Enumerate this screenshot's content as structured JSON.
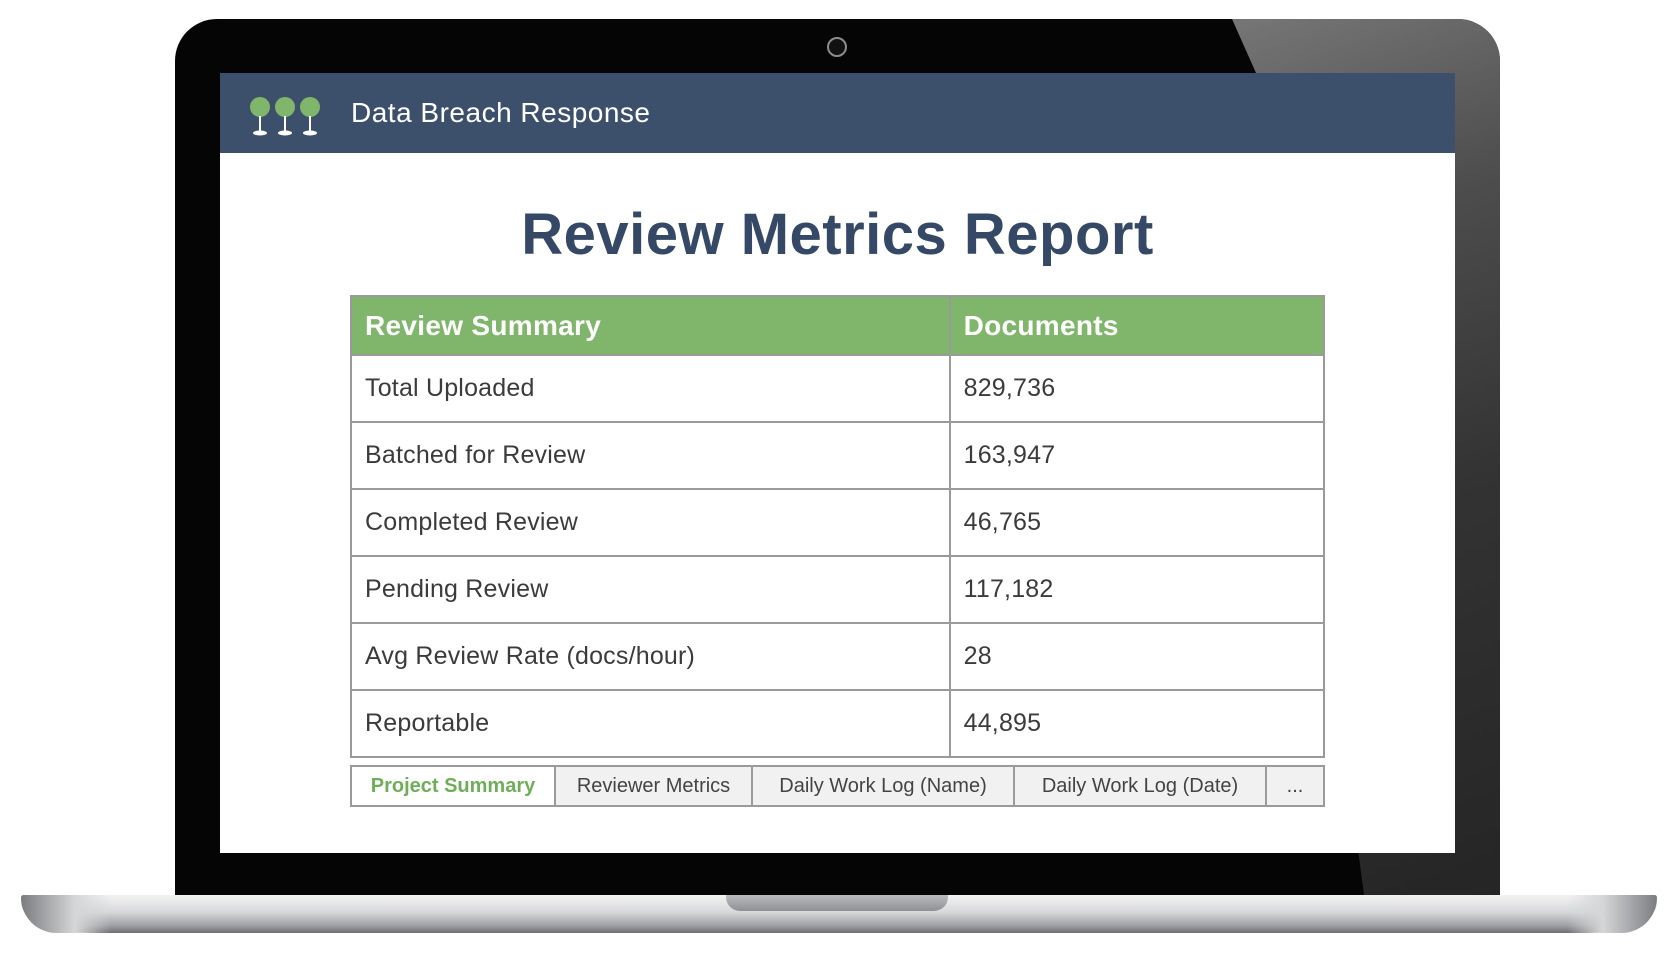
{
  "app": {
    "title": "Data Breach Response",
    "brand_color": "#3c506c",
    "accent_color": "#80b66b"
  },
  "report": {
    "title": "Review Metrics Report",
    "table": {
      "headers": [
        "Review Summary",
        "Documents"
      ],
      "rows": [
        {
          "label": "Total Uploaded",
          "value": "829,736"
        },
        {
          "label": "Batched for Review",
          "value": "163,947"
        },
        {
          "label": "Completed Review",
          "value": "46,765"
        },
        {
          "label": "Pending Review",
          "value": "117,182"
        },
        {
          "label": "Avg Review Rate (docs/hour)",
          "value": "28"
        },
        {
          "label": "Reportable",
          "value": "44,895"
        }
      ]
    },
    "tabs": [
      {
        "label": "Project Summary",
        "active": true
      },
      {
        "label": "Reviewer Metrics",
        "active": false
      },
      {
        "label": "Daily Work Log (Name)",
        "active": false
      },
      {
        "label": "Daily Work Log (Date)",
        "active": false
      },
      {
        "label": "...",
        "active": false
      }
    ]
  },
  "icons": {
    "logo": "three-trees-logo-icon",
    "camera": "webcam-icon"
  }
}
